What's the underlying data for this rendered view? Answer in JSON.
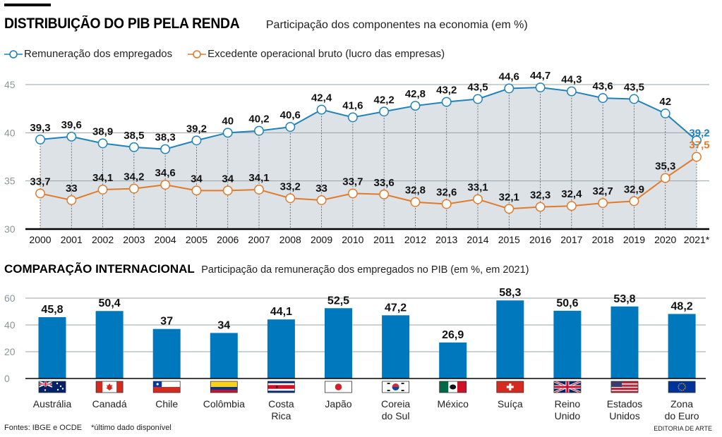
{
  "header": {
    "title": "DISTRIBUIÇÃO DO PIB PELA RENDA",
    "subtitle": "Participação dos componentes na economia (em %)"
  },
  "colors": {
    "employees": "#1f82b8",
    "surplus": "#e07b2c",
    "area_fill": "#dde2e6",
    "bar": "#0078be",
    "last_label_employees": "#1f82b8",
    "last_label_surplus": "#e07b2c"
  },
  "section2": {
    "title": "COMPARAÇÃO INTERNACIONAL",
    "subtitle": "Participação da remuneração dos empregados no PIB (em %, em 2021)"
  },
  "footer": {
    "sources": "Fontes: IBGE e OCDE",
    "note": "*último dado disponível",
    "credit": "EDITORIA DE ARTE"
  },
  "chart_data": [
    {
      "type": "line",
      "title": "DISTRIBUIÇÃO DO PIB PELA RENDA",
      "subtitle": "Participação dos componentes na economia (em %)",
      "xlabel": "",
      "ylabel": "",
      "x": [
        "2000",
        "2001",
        "2002",
        "2003",
        "2004",
        "2005",
        "2006",
        "2007",
        "2008",
        "2009",
        "2010",
        "2011",
        "2012",
        "2013",
        "2014",
        "2015",
        "2016",
        "2017",
        "2018",
        "2019",
        "2020",
        "2021*"
      ],
      "ylim": [
        30,
        45
      ],
      "yticks": [
        30,
        35,
        40,
        45
      ],
      "grid": true,
      "legend_position": "top-left",
      "series": [
        {
          "name": "Remuneração dos empregados",
          "values": [
            39.3,
            39.6,
            38.9,
            38.5,
            38.3,
            39.2,
            40,
            40.2,
            40.6,
            42.4,
            41.6,
            42.2,
            42.8,
            43.2,
            43.5,
            44.6,
            44.7,
            44.3,
            43.6,
            43.5,
            42,
            39.2
          ],
          "labels": [
            "39,3",
            "39,6",
            "38,9",
            "38,5",
            "38,3",
            "39,2",
            "40",
            "40,2",
            "40,6",
            "42,4",
            "41,6",
            "42,2",
            "42,8",
            "43,2",
            "43,5",
            "44,6",
            "44,7",
            "44,3",
            "43,6",
            "43,5",
            "42",
            "39,2"
          ]
        },
        {
          "name": "Excedente operacional bruto (lucro das empresas)",
          "values": [
            33.7,
            33,
            34.1,
            34.2,
            34.6,
            34,
            34,
            34.1,
            33.2,
            33,
            33.7,
            33.6,
            32.8,
            32.6,
            33.1,
            32.1,
            32.3,
            32.4,
            32.7,
            32.9,
            35.3,
            37.5
          ],
          "labels": [
            "33,7",
            "33",
            "34,1",
            "34,2",
            "34,6",
            "34",
            "34",
            "34,1",
            "33,2",
            "33",
            "33,7",
            "33,6",
            "32,8",
            "32,6",
            "33,1",
            "32,1",
            "32,3",
            "32,4",
            "32,7",
            "32,9",
            "35,3",
            "37,5"
          ]
        }
      ]
    },
    {
      "type": "bar",
      "title": "COMPARAÇÃO INTERNACIONAL",
      "subtitle": "Participação da remuneração dos empregados no PIB (em %, em 2021)",
      "xlabel": "",
      "ylabel": "",
      "ylim": [
        0,
        60
      ],
      "yticks": [
        0,
        20,
        40,
        60
      ],
      "grid": true,
      "categories": [
        "Austrália",
        "Canadá",
        "Chile",
        "Colômbia",
        "Costa Rica",
        "Japão",
        "Coreia do Sul",
        "México",
        "Suíça",
        "Reino Unido",
        "Estados Unidos",
        "Zona do Euro"
      ],
      "category_lines": [
        [
          "Austrália"
        ],
        [
          "Canadá"
        ],
        [
          "Chile"
        ],
        [
          "Colômbia"
        ],
        [
          "Costa",
          "Rica"
        ],
        [
          "Japão"
        ],
        [
          "Coreia",
          "do Sul"
        ],
        [
          "México"
        ],
        [
          "Suíça"
        ],
        [
          "Reino",
          "Unido"
        ],
        [
          "Estados",
          "Unidos"
        ],
        [
          "Zona",
          "do Euro"
        ]
      ],
      "flag_icons": [
        "australia-flag-icon",
        "canada-flag-icon",
        "chile-flag-icon",
        "colombia-flag-icon",
        "costa-rica-flag-icon",
        "japan-flag-icon",
        "south-korea-flag-icon",
        "mexico-flag-icon",
        "switzerland-flag-icon",
        "uk-flag-icon",
        "usa-flag-icon",
        "eu-flag-icon"
      ],
      "values": [
        45.8,
        50.4,
        37,
        34,
        44.1,
        52.5,
        47.2,
        26.9,
        58.3,
        50.6,
        53.8,
        48.2
      ],
      "labels": [
        "45,8",
        "50,4",
        "37",
        "34",
        "44,1",
        "52,5",
        "47,2",
        "26,9",
        "58,3",
        "50,6",
        "53,8",
        "48,2"
      ]
    }
  ]
}
